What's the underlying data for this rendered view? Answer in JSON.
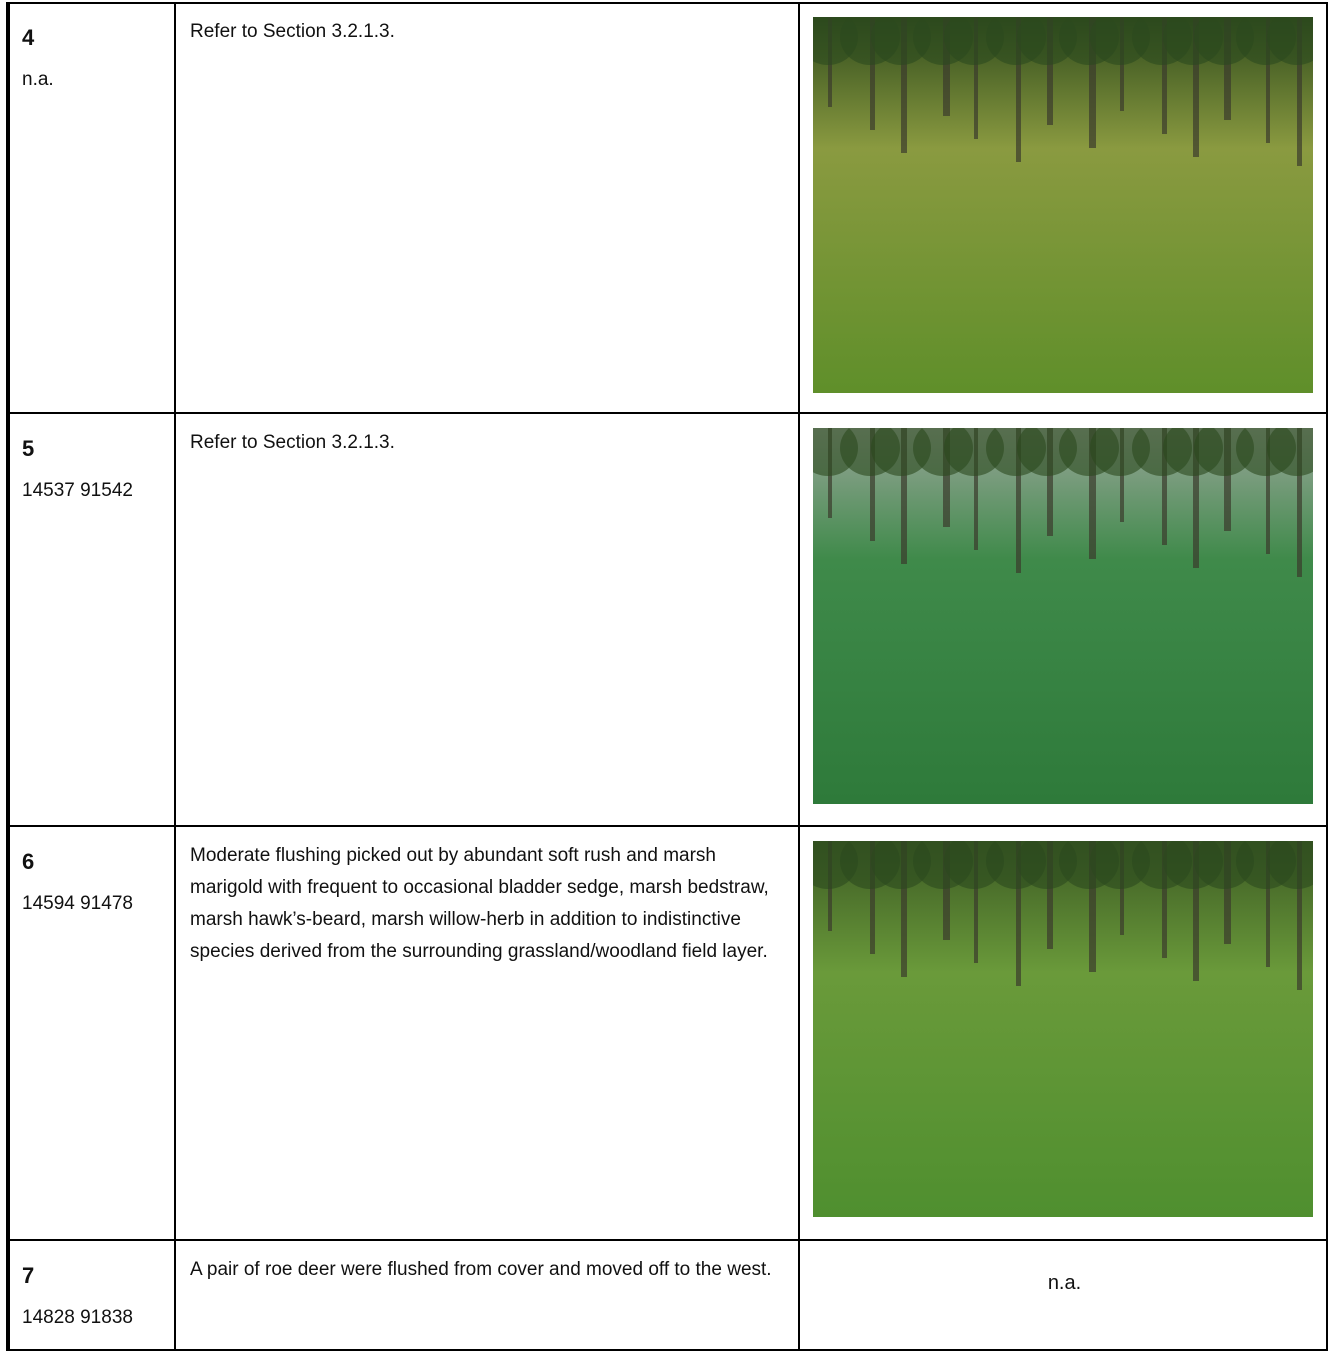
{
  "table": {
    "rows": [
      {
        "id": "4",
        "location": "n.a.",
        "description": "Refer to Section 3.2.1.3."
      },
      {
        "id": "5",
        "location": "14537 91542",
        "description": "Refer to Section 3.2.1.3."
      },
      {
        "id": "6",
        "location": "14594 91478",
        "description": "Moderate flushing picked out by abundant soft rush and marsh marigold with frequent to occasional bladder sedge, marsh bedstraw, marsh hawk’s-beard, marsh willow-herb in addition to indistinctive species derived from the surrounding grassland/woodland field layer."
      },
      {
        "id": "7",
        "location": "14828 91838",
        "description": "A pair of roe deer were flushed from cover and moved off to the west.",
        "photo": "n.a."
      }
    ]
  }
}
